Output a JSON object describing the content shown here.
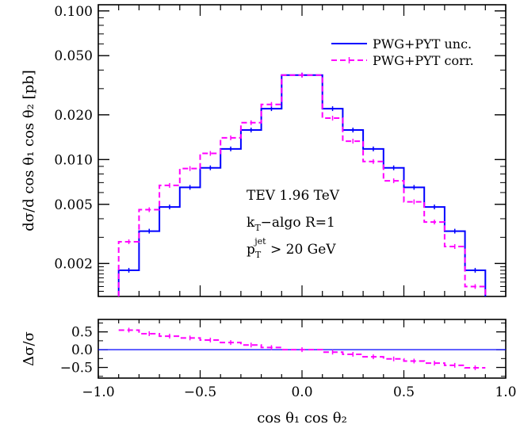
{
  "chart_data": [
    {
      "type": "line",
      "step": true,
      "ylabel": "dσ/d cos θ₁ cos θ₂ [pb]",
      "xlim": [
        -1.0,
        1.0
      ],
      "ylim": [
        0.0012,
        0.11
      ],
      "yscale": "log",
      "x_ticks": [],
      "y_ticks": [
        "0.002",
        "0.005",
        "0.010",
        "0.020",
        "0.050",
        "0.100"
      ],
      "bin_edges": [
        -0.9,
        -0.8,
        -0.7,
        -0.6,
        -0.5,
        -0.4,
        -0.3,
        -0.2,
        -0.1,
        0.1,
        0.2,
        0.3,
        0.4,
        0.5,
        0.6,
        0.7,
        0.8,
        0.9
      ],
      "series": [
        {
          "name": "PWG+PYT unc.",
          "color": "#0000ff",
          "dash": "solid",
          "values": [
            0.0018,
            0.0033,
            0.0048,
            0.0065,
            0.0088,
            0.0118,
            0.0158,
            0.022,
            0.037,
            0.022,
            0.0158,
            0.0118,
            0.0088,
            0.0065,
            0.0048,
            0.0033,
            0.0018
          ]
        },
        {
          "name": "PWG+PYT corr.",
          "color": "#ff00ff",
          "dash": "dashed",
          "values": [
            0.0028,
            0.0046,
            0.0067,
            0.0087,
            0.011,
            0.014,
            0.0177,
            0.0235,
            0.037,
            0.019,
            0.0133,
            0.0097,
            0.0072,
            0.0052,
            0.0038,
            0.0026,
            0.0014
          ]
        }
      ],
      "legend": "top-right",
      "annotations": [
        "TEV 1.96 TeV",
        "k",
        "T",
        "−algo R=1",
        "p",
        "T",
        "jet",
        " > 20 GeV"
      ]
    },
    {
      "type": "line",
      "step": true,
      "xlabel": "cos θ₁ cos θ₂",
      "ylabel": "Δσ/σ",
      "xlim": [
        -1.0,
        1.0
      ],
      "ylim": [
        -0.8,
        0.85
      ],
      "x_ticks": [
        "−1.0",
        "−0.5",
        "0.0",
        "0.5",
        "1.0"
      ],
      "y_ticks": [
        "0.5",
        "0.0",
        "−0.5"
      ],
      "bin_edges": [
        -0.9,
        -0.8,
        -0.7,
        -0.6,
        -0.5,
        -0.4,
        -0.3,
        -0.2,
        -0.1,
        0.1,
        0.2,
        0.3,
        0.4,
        0.5,
        0.6,
        0.7,
        0.8,
        0.9
      ],
      "series": [
        {
          "name": "",
          "color": "#ff00ff",
          "dash": "dashed",
          "values": [
            0.55,
            0.45,
            0.38,
            0.33,
            0.27,
            0.2,
            0.13,
            0.06,
            0.0,
            -0.07,
            -0.13,
            -0.2,
            -0.26,
            -0.32,
            -0.38,
            -0.44,
            -0.51
          ]
        }
      ],
      "reference_line": {
        "y": 0.0,
        "color": "#0000ff"
      }
    }
  ]
}
